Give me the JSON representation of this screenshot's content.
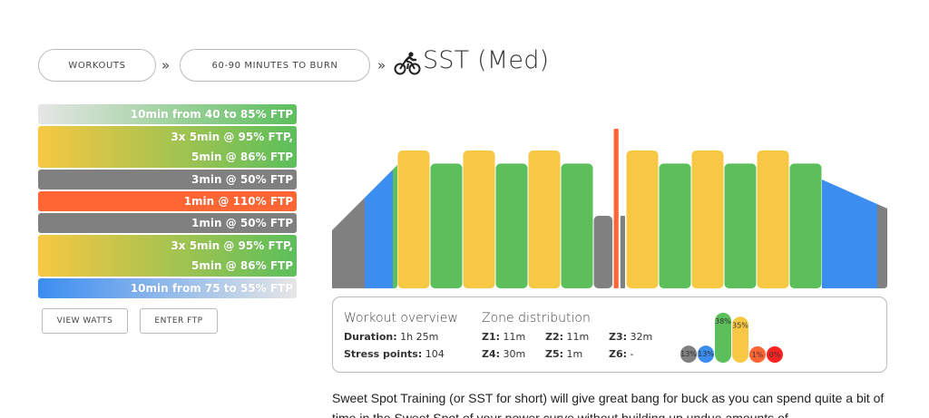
{
  "breadcrumb": {
    "workouts_label": "WORKOUTS",
    "category_label": "60-90 MINUTES TO BURN",
    "separator": "»",
    "title": "SST (Med)"
  },
  "steps": [
    {
      "label": "10min from 40 to 85% FTP",
      "line2": "",
      "gradient": [
        "#e6e6e6",
        "#5cbf5c"
      ],
      "tall": false
    },
    {
      "label": "3x 5min @ 95% FTP,",
      "line2": "5min @ 86% FTP",
      "gradient": [
        "#f7c843",
        "#5cbf5c"
      ],
      "tall": true
    },
    {
      "label": "3min @ 50% FTP",
      "line2": "",
      "gradient": [
        "#808080",
        "#808080"
      ],
      "tall": false
    },
    {
      "label": "1min @ 110% FTP",
      "line2": "",
      "gradient": [
        "#ff6633",
        "#ff6633"
      ],
      "tall": false
    },
    {
      "label": "1min @ 50% FTP",
      "line2": "",
      "gradient": [
        "#808080",
        "#808080"
      ],
      "tall": false
    },
    {
      "label": "3x 5min @ 95% FTP,",
      "line2": "5min @ 86% FTP",
      "gradient": [
        "#f7c843",
        "#5cbf5c"
      ],
      "tall": true
    },
    {
      "label": "10min from 75 to 55% FTP",
      "line2": "",
      "gradient": [
        "#3b8df0",
        "#e6e6e6"
      ],
      "tall": false
    }
  ],
  "buttons": {
    "view_watts": "VIEW WATTS",
    "enter_ftp": "ENTER FTP"
  },
  "colors": {
    "z1": "#808080",
    "z2": "#3b8df0",
    "z3": "#5cbf5c",
    "z4": "#f7c843",
    "z5": "#ff6633",
    "z6": "#ff2222"
  },
  "chart_data": {
    "type": "area",
    "xlabel": "",
    "ylabel": "",
    "segments": [
      {
        "duration": 10,
        "from": 40,
        "to": 85,
        "kind": "ramp"
      },
      {
        "duration": 5,
        "power": 95
      },
      {
        "duration": 5,
        "power": 86
      },
      {
        "duration": 5,
        "power": 95
      },
      {
        "duration": 5,
        "power": 86
      },
      {
        "duration": 5,
        "power": 95
      },
      {
        "duration": 5,
        "power": 86
      },
      {
        "duration": 3,
        "power": 50
      },
      {
        "duration": 1,
        "power": 110
      },
      {
        "duration": 1,
        "power": 50
      },
      {
        "duration": 5,
        "power": 95
      },
      {
        "duration": 5,
        "power": 86
      },
      {
        "duration": 5,
        "power": 95
      },
      {
        "duration": 5,
        "power": 86
      },
      {
        "duration": 5,
        "power": 95
      },
      {
        "duration": 5,
        "power": 86
      },
      {
        "duration": 10,
        "from": 75,
        "to": 55,
        "kind": "ramp"
      }
    ],
    "y_range": [
      0,
      110
    ]
  },
  "overview": {
    "heading": "Workout overview",
    "duration_label": "Duration:",
    "duration_value": "1h 25m",
    "stress_label": "Stress points:",
    "stress_value": "104",
    "zone_heading": "Zone distribution",
    "zones": [
      {
        "label": "Z1:",
        "value": "11m"
      },
      {
        "label": "Z2:",
        "value": "11m"
      },
      {
        "label": "Z3:",
        "value": "32m"
      },
      {
        "label": "Z4:",
        "value": "30m"
      },
      {
        "label": "Z5:",
        "value": "1m"
      },
      {
        "label": "Z6:",
        "value": "-"
      }
    ],
    "distribution": [
      {
        "zone": "z1",
        "percent": 13,
        "label": "13%"
      },
      {
        "zone": "z2",
        "percent": 13,
        "label": "13%"
      },
      {
        "zone": "z3",
        "percent": 38,
        "label": "38%"
      },
      {
        "zone": "z4",
        "percent": 35,
        "label": "35%"
      },
      {
        "zone": "z5",
        "percent": 1,
        "label": "1%"
      },
      {
        "zone": "z6",
        "percent": 0,
        "label": "0%"
      }
    ]
  },
  "description": "Sweet Spot Training (or SST for short) will give great bang for buck as you can spend quite a bit of time in the Sweet Spot of your power curve without building up undue amounts of"
}
